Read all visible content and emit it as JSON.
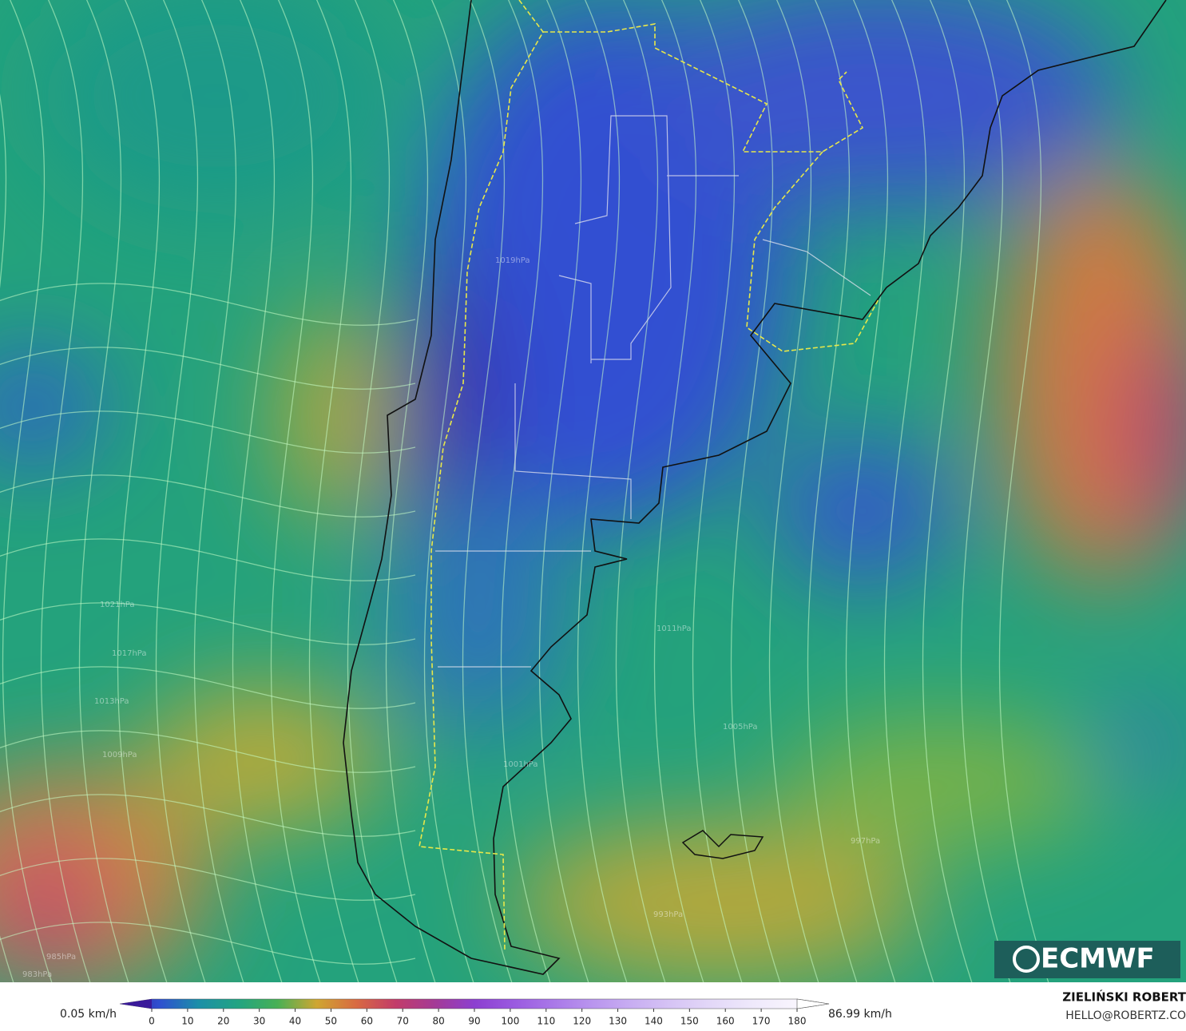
{
  "legend": {
    "min_label": "0.05 km/h",
    "max_label": "86.99 km/h",
    "ticks": [
      0,
      10,
      20,
      30,
      40,
      50,
      60,
      70,
      80,
      90,
      100,
      110,
      120,
      130,
      140,
      150,
      160,
      170,
      180
    ],
    "colors": [
      "#3a1a9a",
      "#2f4fd0",
      "#1c8fa8",
      "#22a482",
      "#48b055",
      "#cfa632",
      "#d86a42",
      "#c23c6a",
      "#a43a96",
      "#8c3fd0",
      "#9a5ae0",
      "#a978e8",
      "#b995ee",
      "#c8aef2",
      "#d6c4f5",
      "#e3d8f8",
      "#eee8fb",
      "#f7f3fd",
      "#ffffff"
    ]
  },
  "pressure_labels": [
    "1019hPa",
    "1021hPa",
    "1017hPa",
    "1013hPa",
    "1009hPa",
    "1011hPa",
    "1005hPa",
    "1001hPa",
    "997hPa",
    "993hPa",
    "985hPa",
    "983hPa"
  ],
  "logo": {
    "text": "ECMWF"
  },
  "credits": {
    "name": "ZIELIŃSKI ROBERT",
    "email": "HELLO@ROBERTZ.CO"
  }
}
